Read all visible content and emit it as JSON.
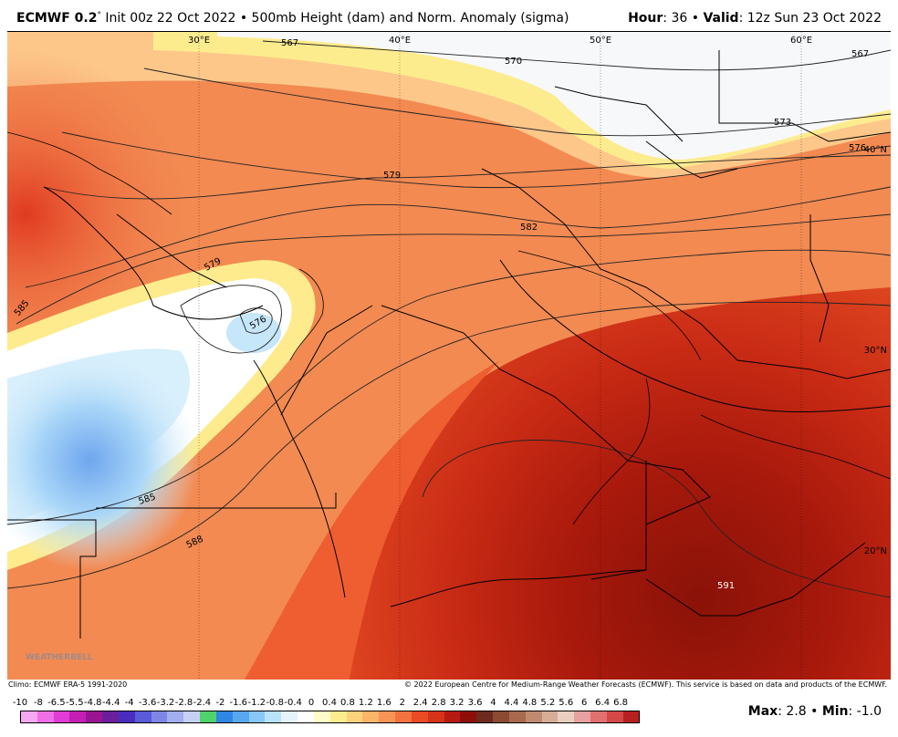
{
  "header": {
    "model": "ECMWF 0.2",
    "degree_mark": "°",
    "init_text": " Init 00z 22 Oct 2022 • 500mb Height (dam) and Norm. Anomaly (sigma)",
    "hour_label": "Hour",
    "hour_value": ": 36 • ",
    "valid_label": "Valid",
    "valid_value": ": 12z Sun 23 Oct 2022"
  },
  "map": {
    "lon_labels": [
      "30°E",
      "40°E",
      "50°E",
      "60°E"
    ],
    "lat_labels": [
      "40°N",
      "30°N",
      "20°N"
    ],
    "contour_labels": [
      "567",
      "570",
      "567",
      "573",
      "576",
      "579",
      "582",
      "579",
      "576",
      "585",
      "585",
      "588",
      "591"
    ],
    "watermark": "WEATHERBELL",
    "colors": {
      "ocean": "#ffffff",
      "borders": "#000000"
    }
  },
  "footer": {
    "climo": "Climo: ECMWF ERA-5 1991-2020",
    "copyright": "© 2022 European Centre for Medium-Range Weather Forecasts (ECMWF). This service is based on data and products of the ECMWF.",
    "max_label": "Max",
    "max_value": ": 2.8 • ",
    "min_label": "Min",
    "min_value": ": -1.0"
  },
  "colorbar": {
    "labels": [
      "-10",
      "-8",
      "-6.5",
      "-5.5",
      "-4.8",
      "-4.4",
      "-4",
      "-3.6",
      "-3.2",
      "-2.8",
      "-2.4",
      "-2",
      "-1.6",
      "-1.2",
      "-0.8",
      "-0.4",
      "0",
      "0.4",
      "0.8",
      "1.2",
      "1.6",
      "2",
      "2.4",
      "2.8",
      "3.2",
      "3.6",
      "4",
      "4.4",
      "4.8",
      "5.2",
      "5.6",
      "6",
      "6.4",
      "6.8"
    ],
    "colors": [
      "#f7a8f0",
      "#ef6fe6",
      "#e23bd6",
      "#c41fb5",
      "#9a1592",
      "#6b1f9c",
      "#4a2cc0",
      "#5a5bd8",
      "#7e86e6",
      "#a3aeef",
      "#c6d0f6",
      "#4fd36a",
      "#2f86e3",
      "#58a8ef",
      "#88c8f6",
      "#b8e3fb",
      "#e4f4fc",
      "#ffffff",
      "#fefbc8",
      "#fdec8e",
      "#fdd27c",
      "#fbb468",
      "#f89456",
      "#f47240",
      "#ea4a24",
      "#d63318",
      "#b71a10",
      "#8e0e0a",
      "#6e2a1c",
      "#8c4a32",
      "#a76a4e",
      "#c08a70",
      "#d6ad96",
      "#e9cfc0",
      "#e8a0a0",
      "#e27070",
      "#d54848",
      "#b92020"
    ]
  }
}
